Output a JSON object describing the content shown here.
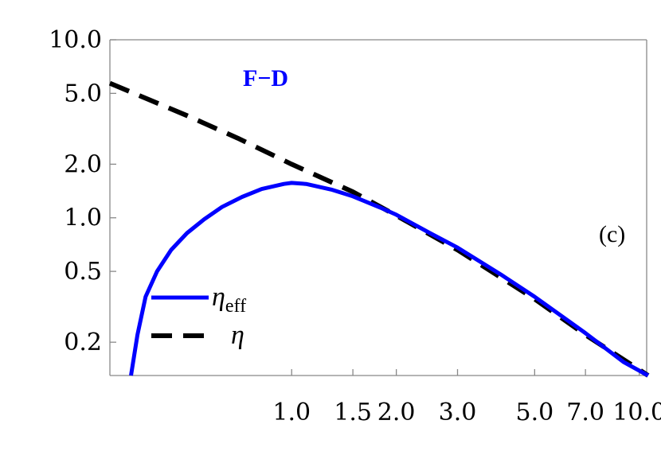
{
  "chart_data": {
    "type": "line",
    "title": "F−D",
    "panel_label": "(c)",
    "xlabel": "",
    "ylabel": "",
    "x_scale": "log",
    "y_scale": "log",
    "xlim": [
      0.3,
      10.5
    ],
    "ylim": [
      0.13,
      10.0
    ],
    "x_ticks": [
      {
        "value": 1.0,
        "label": "1.0"
      },
      {
        "value": 1.5,
        "label": "1.5"
      },
      {
        "value": 2.0,
        "label": "2.0"
      },
      {
        "value": 3.0,
        "label": "3.0"
      },
      {
        "value": 5.0,
        "label": "5.0"
      },
      {
        "value": 7.0,
        "label": "7.0"
      },
      {
        "value": 10.0,
        "label": "10.0"
      }
    ],
    "y_ticks": [
      {
        "value": 0.2,
        "label": "0.2"
      },
      {
        "value": 0.5,
        "label": "0.5"
      },
      {
        "value": 1.0,
        "label": "1.0"
      },
      {
        "value": 2.0,
        "label": "2.0"
      },
      {
        "value": 5.0,
        "label": "5.0"
      },
      {
        "value": 10.0,
        "label": "10.0"
      }
    ],
    "grid": false,
    "legend_position": "lower-left",
    "series": [
      {
        "name": "η",
        "name_subscript": "eff",
        "color": "#0000ff",
        "style": "solid",
        "x": [
          0.345,
          0.36,
          0.38,
          0.41,
          0.45,
          0.5,
          0.56,
          0.63,
          0.72,
          0.82,
          0.95,
          1.0,
          1.1,
          1.3,
          1.5,
          1.8,
          2.0,
          2.5,
          3.0,
          4.0,
          5.0,
          7.0,
          9.0,
          10.6
        ],
        "y": [
          0.13,
          0.22,
          0.36,
          0.5,
          0.66,
          0.82,
          0.98,
          1.15,
          1.31,
          1.45,
          1.55,
          1.57,
          1.55,
          1.44,
          1.32,
          1.14,
          1.04,
          0.82,
          0.68,
          0.48,
          0.36,
          0.225,
          0.155,
          0.125
        ]
      },
      {
        "name": "η",
        "name_subscript": "",
        "color": "#000000",
        "style": "dashed",
        "x": [
          0.3,
          0.5,
          0.7,
          1.0,
          1.5,
          2.0,
          3.0,
          5.0,
          7.0,
          10.6
        ],
        "y": [
          5.7,
          3.75,
          2.8,
          2.0,
          1.4,
          1.03,
          0.66,
          0.35,
          0.22,
          0.125
        ]
      }
    ]
  }
}
